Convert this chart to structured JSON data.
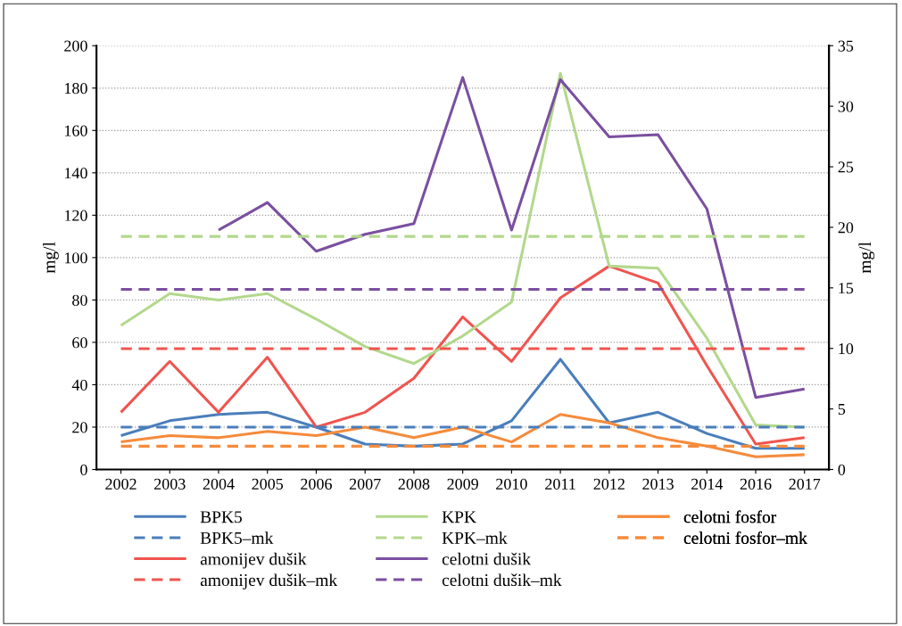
{
  "chart_data": {
    "type": "line",
    "ylabel": "mg/l",
    "y2label": "mg/l",
    "categories": [
      "2002",
      "2003",
      "2004",
      "2005",
      "2006",
      "2007",
      "2008",
      "2009",
      "2010",
      "2011",
      "2012",
      "2013",
      "2014",
      "2016",
      "2017"
    ],
    "ylim": [
      0,
      200
    ],
    "yticks": [
      0,
      20,
      40,
      60,
      80,
      100,
      120,
      140,
      160,
      180,
      200
    ],
    "y2lim": [
      0,
      35
    ],
    "y2ticks": [
      0,
      5,
      10,
      15,
      20,
      25,
      30,
      35
    ],
    "grid": "y",
    "legend": "bottom",
    "marker": "none",
    "series": [
      {
        "name": "BPK5",
        "color": "#4a7ebb",
        "line_style": "solid",
        "values": [
          16,
          23,
          26,
          27,
          20,
          12,
          11,
          12,
          23,
          52,
          22,
          27,
          17,
          10,
          10
        ]
      },
      {
        "name": "BPK5–mk",
        "color": "#4a7ebb",
        "line_style": "dashed",
        "values": [
          20,
          20,
          20,
          20,
          20,
          20,
          20,
          20,
          20,
          20,
          20,
          20,
          20,
          20,
          20
        ]
      },
      {
        "name": "amonijev dušik",
        "color": "#f0544f",
        "line_style": "solid",
        "values": [
          27,
          51,
          27,
          53,
          20,
          27,
          43,
          72,
          51,
          81,
          96,
          88,
          49,
          12,
          15
        ]
      },
      {
        "name": "amonijev dušik–mk",
        "color": "#f0544f",
        "line_style": "dashed",
        "values": [
          57,
          57,
          57,
          57,
          57,
          57,
          57,
          57,
          57,
          57,
          57,
          57,
          57,
          57,
          57
        ]
      },
      {
        "name": "KPK",
        "color": "#b3d88c",
        "line_style": "solid",
        "values": [
          68,
          83,
          80,
          83,
          71,
          58,
          50,
          63,
          79,
          187,
          96,
          95,
          62,
          21,
          20
        ]
      },
      {
        "name": "KPK–mk",
        "color": "#b3d88c",
        "line_style": "dashed",
        "values": [
          110,
          110,
          110,
          110,
          110,
          110,
          110,
          110,
          110,
          110,
          110,
          110,
          110,
          110,
          110
        ]
      },
      {
        "name": "celotni dušik",
        "color": "#7a4fa0",
        "line_style": "solid",
        "values": [
          null,
          null,
          113,
          126,
          103,
          111,
          116,
          185,
          113,
          184,
          157,
          158,
          123,
          34,
          38
        ]
      },
      {
        "name": "celotni dušik–mk",
        "color": "#7a4fa0",
        "line_style": "dashed",
        "values": [
          85,
          85,
          85,
          85,
          85,
          85,
          85,
          85,
          85,
          85,
          85,
          85,
          85,
          85,
          85
        ]
      },
      {
        "name": "celotni fosfor",
        "color": "#f58b3c",
        "line_style": "solid",
        "values": [
          13,
          16,
          15,
          18,
          16,
          20,
          15,
          20,
          13,
          26,
          22,
          15,
          11,
          6,
          7
        ]
      },
      {
        "name": "celotni fosfor–mk",
        "color": "#f58b3c",
        "line_style": "dashed",
        "values": [
          11,
          11,
          11,
          11,
          11,
          11,
          11,
          11,
          11,
          11,
          11,
          11,
          11,
          11,
          11
        ]
      }
    ]
  }
}
